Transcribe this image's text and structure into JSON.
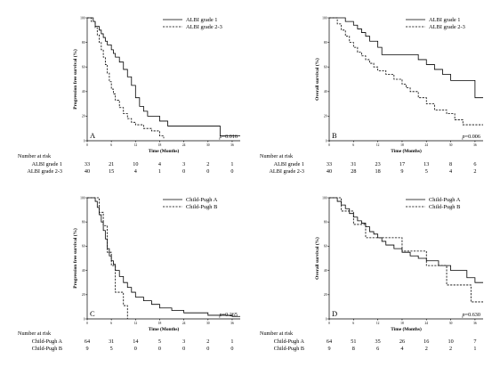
{
  "figure": {
    "risk_title": "Number at risk",
    "p_prefix": "p",
    "risk_times": [
      0,
      6,
      12,
      18,
      24,
      30,
      36
    ]
  },
  "chart_data": [
    {
      "id": "A",
      "type": "line",
      "step": true,
      "panel_label": "A",
      "xlabel": "Time (Months)",
      "ylabel": "Progression free survival (%)",
      "xlim": [
        0,
        38
      ],
      "ylim": [
        0,
        100
      ],
      "xticks": [
        0,
        6,
        12,
        18,
        24,
        30,
        36
      ],
      "yticks": [
        0,
        20,
        40,
        60,
        80,
        100
      ],
      "grid": false,
      "legend_position": "top-right",
      "p_value": "=0.016",
      "series": [
        {
          "name": "ALBI grade 1",
          "style": "solid",
          "x": [
            0,
            1.5,
            2,
            3,
            3.5,
            4,
            4.5,
            5,
            6,
            6.5,
            7,
            8,
            9,
            10,
            11,
            12,
            13,
            14,
            15,
            18,
            20,
            24,
            27,
            33,
            38
          ],
          "y": [
            100,
            97,
            93,
            90,
            87,
            84,
            81,
            78,
            74,
            71,
            68,
            64,
            58,
            52,
            45,
            35,
            28,
            24,
            20,
            16,
            12,
            12,
            12,
            4,
            4
          ],
          "risk": [
            33,
            21,
            10,
            4,
            3,
            2,
            1
          ]
        },
        {
          "name": "ALBI grade 2-3",
          "style": "dashed",
          "x": [
            0,
            1,
            2,
            2.5,
            3,
            3.5,
            4,
            4.5,
            5,
            5.5,
            6,
            6.5,
            7,
            8,
            9,
            10,
            11,
            12,
            14,
            16,
            18,
            19
          ],
          "y": [
            100,
            97,
            92,
            86,
            80,
            74,
            68,
            62,
            55,
            48,
            42,
            38,
            33,
            27,
            22,
            18,
            15,
            13,
            10,
            8,
            4,
            2
          ],
          "risk": [
            40,
            15,
            4,
            1,
            0,
            0,
            0
          ]
        }
      ]
    },
    {
      "id": "B",
      "type": "line",
      "step": true,
      "panel_label": "B",
      "xlabel": "Time (Months)",
      "ylabel": "Overall survival (%)",
      "xlim": [
        0,
        38
      ],
      "ylim": [
        0,
        100
      ],
      "xticks": [
        0,
        6,
        12,
        18,
        24,
        30,
        36
      ],
      "yticks": [
        0,
        20,
        40,
        60,
        80,
        100
      ],
      "grid": false,
      "legend_position": "top-right",
      "p_value": "=0.006",
      "series": [
        {
          "name": "ALBI grade 1",
          "style": "solid",
          "x": [
            0,
            4,
            6,
            7,
            8,
            9,
            10,
            12,
            13,
            20,
            22,
            24,
            26,
            28,
            30,
            33,
            36,
            38
          ],
          "y": [
            100,
            97,
            94,
            91,
            88,
            85,
            81,
            76,
            70,
            70,
            66,
            62,
            58,
            54,
            49,
            49,
            35,
            35
          ],
          "risk": [
            33,
            31,
            23,
            17,
            13,
            8,
            6
          ]
        },
        {
          "name": "ALBI grade 2-3",
          "style": "dashed",
          "x": [
            0,
            2,
            3,
            4,
            5,
            6,
            7,
            8,
            9,
            10,
            11,
            12,
            14,
            16,
            18,
            19,
            20,
            22,
            24,
            26,
            29,
            31,
            33,
            36,
            38
          ],
          "y": [
            100,
            95,
            90,
            85,
            80,
            76,
            72,
            69,
            66,
            63,
            60,
            57,
            54,
            50,
            46,
            43,
            40,
            35,
            30,
            25,
            22,
            17,
            13,
            13,
            13
          ],
          "risk": [
            40,
            28,
            18,
            9,
            5,
            4,
            2
          ]
        }
      ]
    },
    {
      "id": "C",
      "type": "line",
      "step": true,
      "panel_label": "C",
      "xlabel": "Time (Months)",
      "ylabel": "Progression free survival (%)",
      "xlim": [
        0,
        38
      ],
      "ylim": [
        0,
        100
      ],
      "xticks": [
        0,
        6,
        12,
        18,
        24,
        30,
        36
      ],
      "yticks": [
        0,
        20,
        40,
        60,
        80,
        100
      ],
      "grid": false,
      "legend_position": "top-right",
      "p_value": "=0.265",
      "series": [
        {
          "name": "Child-Pugh A",
          "style": "solid",
          "x": [
            0,
            2,
            2.5,
            3,
            3.5,
            4,
            4.5,
            5,
            5.5,
            6,
            6.5,
            7,
            8,
            9,
            10,
            11,
            12,
            14,
            16,
            18,
            21,
            24,
            30,
            36,
            38
          ],
          "y": [
            100,
            97,
            92,
            86,
            80,
            73,
            66,
            58,
            52,
            48,
            45,
            40,
            35,
            30,
            26,
            22,
            18,
            15,
            12,
            9,
            7,
            5,
            3,
            2,
            2
          ],
          "risk": [
            64,
            31,
            14,
            5,
            3,
            2,
            1
          ]
        },
        {
          "name": "Child-Pugh B",
          "style": "dashed",
          "x": [
            0,
            3,
            4,
            5,
            6,
            7,
            9,
            10
          ],
          "y": [
            100,
            88,
            77,
            55,
            44,
            22,
            11,
            0
          ],
          "risk": [
            9,
            5,
            0,
            0,
            0,
            0,
            0
          ]
        }
      ]
    },
    {
      "id": "D",
      "type": "line",
      "step": true,
      "panel_label": "D",
      "xlabel": "Time (Months)",
      "ylabel": "Overall survival (%)",
      "xlim": [
        0,
        38
      ],
      "ylim": [
        0,
        100
      ],
      "xticks": [
        0,
        6,
        12,
        18,
        24,
        30,
        36
      ],
      "yticks": [
        0,
        20,
        40,
        60,
        80,
        100
      ],
      "grid": false,
      "legend_position": "top-right",
      "p_value": "=0.630",
      "series": [
        {
          "name": "Child-Pugh A",
          "style": "solid",
          "x": [
            0,
            2,
            3,
            4,
            5,
            6,
            7,
            8,
            9,
            10,
            11,
            12,
            13,
            14,
            16,
            18,
            20,
            22,
            24,
            27,
            30,
            34,
            36,
            38
          ],
          "y": [
            100,
            97,
            94,
            91,
            87,
            84,
            81,
            79,
            76,
            72,
            70,
            67,
            64,
            61,
            58,
            55,
            52,
            50,
            48,
            44,
            40,
            34,
            30,
            30
          ],
          "risk": [
            64,
            51,
            35,
            26,
            16,
            10,
            7
          ]
        },
        {
          "name": "Child-Pugh B",
          "style": "dashed",
          "x": [
            0,
            3,
            6,
            9,
            15,
            18,
            24,
            29,
            35,
            38
          ],
          "y": [
            100,
            89,
            78,
            67,
            67,
            56,
            44,
            28,
            14,
            14
          ],
          "risk": [
            9,
            8,
            6,
            4,
            2,
            2,
            1
          ]
        }
      ]
    }
  ]
}
